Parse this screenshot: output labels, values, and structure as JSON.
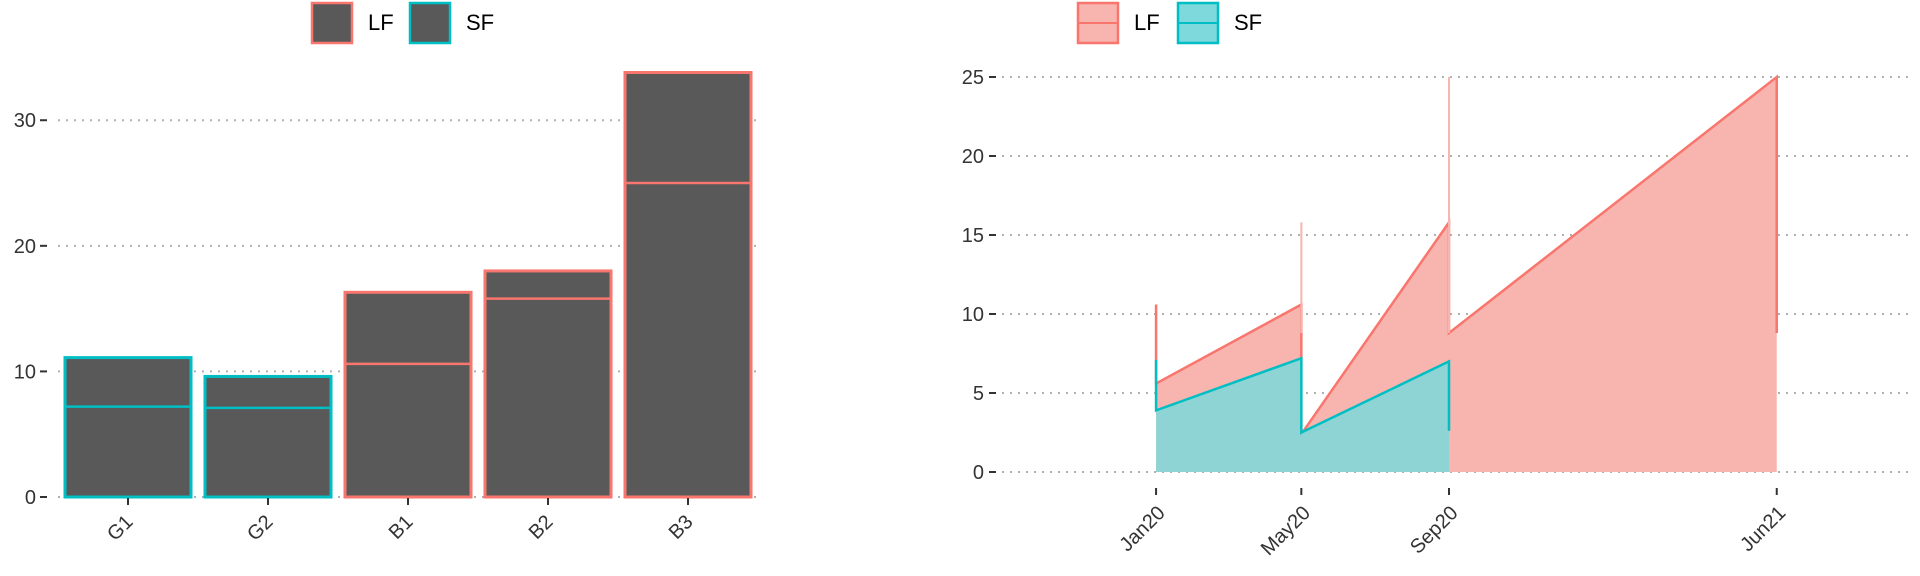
{
  "chart_data": [
    {
      "type": "bar",
      "categories": [
        "G1",
        "G2",
        "B1",
        "B2",
        "B3"
      ],
      "fill_color": "#595959",
      "ylim": [
        0,
        34
      ],
      "yticks": [
        0,
        10,
        20,
        30
      ],
      "legend": {
        "position": "top",
        "items": [
          {
            "label": "LF",
            "color": "#F8766D"
          },
          {
            "label": "SF",
            "color": "#00BFC4"
          }
        ]
      },
      "bars": [
        {
          "category": "G1",
          "total": 11.1,
          "inner_line": 7.2,
          "group": "SF"
        },
        {
          "category": "G2",
          "total": 9.6,
          "inner_line": 7.1,
          "group": "SF"
        },
        {
          "category": "B1",
          "total": 16.3,
          "inner_line": 10.6,
          "group": "LF"
        },
        {
          "category": "B2",
          "total": 18.0,
          "inner_line": 15.8,
          "group": "LF"
        },
        {
          "category": "B3",
          "total": 33.8,
          "inner_line": 25.0,
          "group": "LF"
        }
      ],
      "grid": "horizontal dotted"
    },
    {
      "type": "area",
      "x_ticks": [
        {
          "label": "Jan20",
          "date": "2020-01-01"
        },
        {
          "label": "May20",
          "date": "2020-05-01"
        },
        {
          "label": "Sep20",
          "date": "2020-09-01"
        },
        {
          "label": "Jun21",
          "date": "2021-06-01"
        }
      ],
      "xlim": [
        "2019-08-24",
        "2021-09-20"
      ],
      "ylim": [
        0,
        25
      ],
      "yticks": [
        0,
        5,
        10,
        15,
        20,
        25
      ],
      "legend": {
        "position": "top",
        "items": [
          {
            "label": "LF",
            "color": "#F8766D",
            "fill": "#F8B4AE"
          },
          {
            "label": "SF",
            "color": "#00BFC4",
            "fill": "#7DD9DB"
          }
        ]
      },
      "series": [
        {
          "name": "LF",
          "color": "#F8766D",
          "fill": "#F8B4AE",
          "points": [
            {
              "x": "2020-01-01",
              "y": 10.6
            },
            {
              "x": "2020-01-01",
              "y": 5.6
            },
            {
              "x": "2020-05-01",
              "y": 10.6
            },
            {
              "x": "2020-05-01",
              "y": 2.4
            },
            {
              "x": "2020-09-01",
              "y": 15.8
            },
            {
              "x": "2020-09-01",
              "y": 8.8
            },
            {
              "x": "2021-06-01",
              "y": 25.0
            },
            {
              "x": "2021-06-01",
              "y": 8.8
            }
          ],
          "spikes": [
            {
              "x": "2020-05-01",
              "y": 15.8
            },
            {
              "x": "2020-09-01",
              "y": 25.0
            }
          ]
        },
        {
          "name": "SF",
          "color": "#00BFC4",
          "fill": "#7DD9DB",
          "points": [
            {
              "x": "2020-01-01",
              "y": 7.1
            },
            {
              "x": "2020-01-01",
              "y": 3.9
            },
            {
              "x": "2020-05-01",
              "y": 7.2
            },
            {
              "x": "2020-05-01",
              "y": 2.5
            },
            {
              "x": "2020-09-01",
              "y": 7.0
            },
            {
              "x": "2020-09-01",
              "y": 2.6
            }
          ]
        }
      ],
      "grid": "horizontal dotted"
    }
  ]
}
